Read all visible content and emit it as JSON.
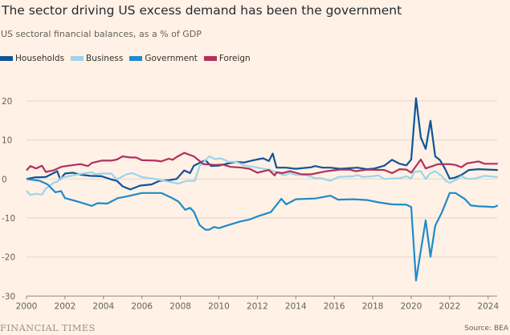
{
  "title": "The sector driving US excess demand has been the government",
  "subtitle": "US sectoral financial balances, as a % of GDP",
  "footer": {
    "brand": "FINANCIAL TIMES",
    "source": "Source: BEA"
  },
  "chart_data": {
    "type": "line",
    "title": "The sector driving US excess demand has been the government",
    "subtitle": "US sectoral financial balances, as a % of GDP",
    "xlabel": "",
    "ylabel": "",
    "xlim": [
      2000,
      2024.6
    ],
    "ylim": [
      -30,
      20
    ],
    "xticks": [
      2000,
      2002,
      2004,
      2006,
      2008,
      2010,
      2012,
      2014,
      2016,
      2018,
      2020,
      2022,
      2024
    ],
    "xtick_labels": [
      "2000",
      "2002",
      "2004",
      "2006",
      "2008",
      "2010",
      "2012",
      "2014",
      "2016",
      "2018",
      "2020",
      "2022",
      "2024"
    ],
    "yticks": [
      -30,
      -20,
      -10,
      0,
      10,
      20
    ],
    "ytick_labels": [
      "-30",
      "-20",
      "-10",
      "0",
      "10",
      "20"
    ],
    "grid": true,
    "legend_position": "top-left",
    "series": [
      {
        "name": "Households",
        "color": "#0f5499",
        "x": [
          2000,
          2000.4,
          2001,
          2001.6,
          2001.75,
          2002,
          2002.4,
          2002.8,
          2003.3,
          2003.9,
          2004.4,
          2004.7,
          2005,
          2005.4,
          2005.9,
          2006.5,
          2006.9,
          2007.4,
          2007.8,
          2008.2,
          2008.5,
          2008.7,
          2009,
          2009.3,
          2009.6,
          2010,
          2010.5,
          2010.9,
          2011.3,
          2011.8,
          2012.3,
          2012.6,
          2012.8,
          2013,
          2013.5,
          2014,
          2014.8,
          2015,
          2015.4,
          2015.8,
          2016.3,
          2017.2,
          2017.7,
          2018.1,
          2018.6,
          2019,
          2019.4,
          2019.75,
          2020,
          2020.25,
          2020.5,
          2020.75,
          2021,
          2021.25,
          2021.5,
          2021.75,
          2022,
          2022.25,
          2022.6,
          2023,
          2023.5,
          2024,
          2024.5
        ],
        "y": [
          0,
          0.4,
          0.5,
          2,
          -0.1,
          1.4,
          1.6,
          1.1,
          0.8,
          0.7,
          -0.1,
          -0.5,
          -1.9,
          -2.7,
          -1.7,
          -1.4,
          -0.5,
          -0.3,
          0,
          2.2,
          1.5,
          3.4,
          4.1,
          4.8,
          3.3,
          3.4,
          4.0,
          4.4,
          4.2,
          4.8,
          5.3,
          4.6,
          6.5,
          2.9,
          2.9,
          2.6,
          3.0,
          3.3,
          2.9,
          2.9,
          2.6,
          2.9,
          2.5,
          2.7,
          3.4,
          4.9,
          3.9,
          3.5,
          5.0,
          20.7,
          10.6,
          7.7,
          14.9,
          5.8,
          4.8,
          2.7,
          0.1,
          0.3,
          1.0,
          2.3,
          2.5,
          2.4,
          2.3
        ]
      },
      {
        "name": "Business",
        "color": "#9dd4ea",
        "x": [
          2000,
          2000.2,
          2000.5,
          2000.8,
          2001,
          2001.4,
          2001.6,
          2001.8,
          2002.2,
          2002.8,
          2003.4,
          2003.6,
          2003.9,
          2004.4,
          2004.7,
          2005.2,
          2005.5,
          2006,
          2006.7,
          2007,
          2007.5,
          2007.9,
          2008.3,
          2008.75,
          2009,
          2009.5,
          2009.8,
          2010.1,
          2010.5,
          2010.9,
          2011.3,
          2011.8,
          2012.2,
          2012.6,
          2013,
          2013.4,
          2013.7,
          2014,
          2014.5,
          2015,
          2015.3,
          2015.8,
          2016.2,
          2017,
          2017.2,
          2017.5,
          2018,
          2018.3,
          2018.6,
          2019.4,
          2019.75,
          2020,
          2020.15,
          2020.5,
          2020.75,
          2021,
          2021.25,
          2021.6,
          2021.8,
          2022,
          2022.3,
          2022.6,
          2022.9,
          2023.3,
          2023.8,
          2024.5
        ],
        "y": [
          -3,
          -4.1,
          -3.8,
          -4,
          -2.5,
          -1,
          -0.7,
          0.3,
          0.7,
          1.3,
          1.7,
          1.2,
          1.4,
          1.4,
          -0.1,
          1.2,
          1.5,
          0.5,
          0,
          -0.3,
          -0.8,
          -1.2,
          -0.5,
          -0.5,
          3.3,
          5.8,
          5.1,
          5.3,
          4.4,
          4.4,
          3.5,
          3.1,
          2.7,
          2.4,
          1.7,
          0.9,
          1.5,
          1.0,
          1.0,
          0.2,
          0.2,
          -0.5,
          0.5,
          0.7,
          1.0,
          0.5,
          0.7,
          0.9,
          0,
          0.2,
          0.7,
          0.1,
          1.8,
          2.0,
          0,
          1.5,
          2.0,
          0.7,
          -0.5,
          -1,
          -0.3,
          0.7,
          0,
          0.1,
          0.8,
          0.5
        ]
      },
      {
        "name": "Government",
        "color": "#1e8bc9",
        "x": [
          2000,
          2000.7,
          2001.1,
          2001.5,
          2001.8,
          2002,
          2002.6,
          2003.4,
          2003.7,
          2004.2,
          2004.75,
          2005.2,
          2006,
          2007,
          2007.5,
          2007.9,
          2008.25,
          2008.5,
          2008.7,
          2009,
          2009.3,
          2009.5,
          2009.75,
          2010,
          2010.5,
          2011.1,
          2011.6,
          2012,
          2012.7,
          2013.25,
          2013.5,
          2014,
          2015,
          2015.8,
          2016.2,
          2017,
          2017.7,
          2018.3,
          2019,
          2019.75,
          2020,
          2020.25,
          2020.75,
          2021,
          2021.25,
          2021.6,
          2022,
          2022.3,
          2022.8,
          2023.1,
          2023.5,
          2024,
          2024.3,
          2024.5
        ],
        "y": [
          0,
          -0.5,
          -1.4,
          -3.4,
          -3.1,
          -4.9,
          -5.7,
          -6.9,
          -6.2,
          -6.3,
          -4.9,
          -4.5,
          -3.6,
          -3.6,
          -4.7,
          -5.8,
          -7.9,
          -7.4,
          -8.4,
          -11.8,
          -13,
          -13,
          -12.3,
          -12.6,
          -11.8,
          -10.9,
          -10.4,
          -9.6,
          -8.5,
          -5.1,
          -6.5,
          -5.2,
          -5.0,
          -4.3,
          -5.3,
          -5.2,
          -5.4,
          -6.0,
          -6.5,
          -6.6,
          -7.2,
          -26,
          -10.6,
          -19.9,
          -12,
          -8.5,
          -3.6,
          -3.6,
          -5.2,
          -6.8,
          -7.0,
          -7.1,
          -7.2,
          -6.8
        ]
      },
      {
        "name": "Foreign",
        "color": "#b1305e",
        "x": [
          2000,
          2000.2,
          2000.5,
          2000.8,
          2001,
          2001.4,
          2001.8,
          2002.2,
          2002.8,
          2003.2,
          2003.4,
          2003.9,
          2004.4,
          2004.7,
          2005,
          2005.4,
          2005.7,
          2006,
          2006.7,
          2007,
          2007.4,
          2007.6,
          2007.8,
          2008.2,
          2008.7,
          2009.2,
          2009.8,
          2010.2,
          2010.6,
          2011.2,
          2011.6,
          2012,
          2012.6,
          2012.9,
          2013,
          2013.3,
          2013.7,
          2014.3,
          2014.8,
          2015.6,
          2016.3,
          2016.8,
          2017.1,
          2017.7,
          2018.6,
          2019,
          2019.4,
          2019.75,
          2020,
          2020.5,
          2020.75,
          2021.4,
          2022,
          2022.3,
          2022.6,
          2022.9,
          2023.5,
          2023.8,
          2024.5
        ],
        "y": [
          2.2,
          3.3,
          2.7,
          3.4,
          1.8,
          2.2,
          3.1,
          3.4,
          3.8,
          3.3,
          4.1,
          4.7,
          4.7,
          5,
          5.8,
          5.5,
          5.5,
          4.8,
          4.7,
          4.5,
          5.2,
          4.9,
          5.6,
          6.7,
          5.8,
          3.8,
          3.6,
          3.7,
          3.1,
          2.9,
          2.6,
          1.6,
          2.3,
          0.9,
          1.7,
          1.5,
          2.0,
          1.2,
          1.2,
          2.0,
          2.4,
          2.4,
          2.0,
          2.4,
          2.3,
          1.5,
          2.5,
          2.4,
          1.6,
          5.0,
          2.7,
          3.8,
          3.8,
          3.6,
          3.0,
          4.0,
          4.5,
          3.9,
          3.9
        ]
      }
    ]
  }
}
